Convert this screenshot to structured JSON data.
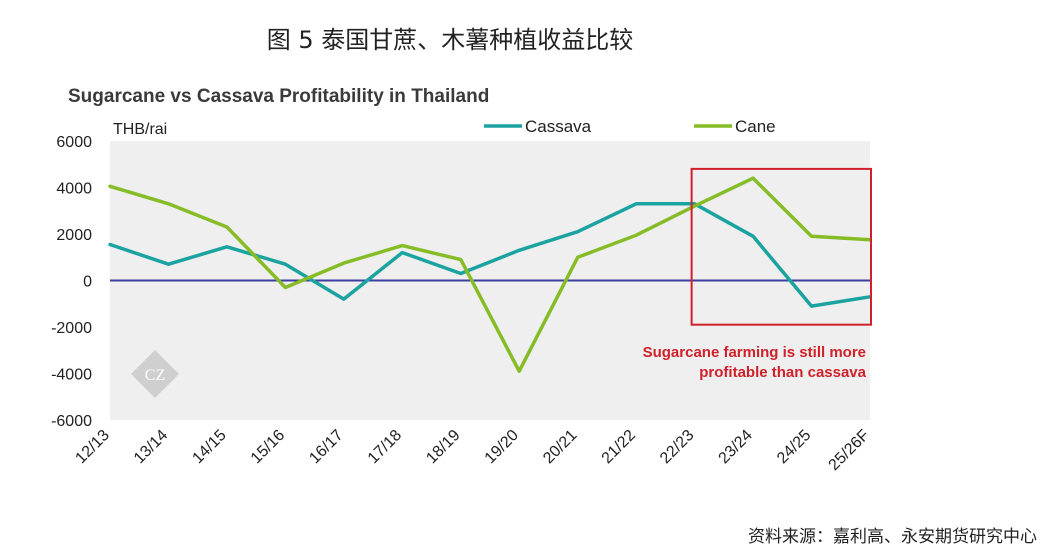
{
  "figure_title": "图 5 泰国甘蔗、木薯种植收益比较",
  "source": "资料来源：嘉利高、永安期货研究中心",
  "watermark": "CZ",
  "colors": {
    "cassava": "#1aa3a0",
    "cane": "#86bd27",
    "zero_line": "#3c3ca0",
    "highlight": "#d0202a",
    "plot_bg": "#efefef"
  },
  "chart_data": {
    "type": "line",
    "title": "Sugarcane vs Cassava Profitability in Thailand",
    "ylabel": "THB/rai",
    "xlabel": "",
    "ylim": [
      -6000,
      6000
    ],
    "yticks": [
      6000,
      4000,
      2000,
      0,
      -2000,
      -4000,
      -6000
    ],
    "ytick_labels": [
      "6000",
      "4000",
      "2000",
      "0",
      "-2000",
      "-4000",
      "-6000"
    ],
    "categories": [
      "12/13",
      "13/14",
      "14/15",
      "15/16",
      "16/17",
      "17/18",
      "18/19",
      "19/20",
      "20/21",
      "21/22",
      "22/23",
      "23/24",
      "24/25",
      "25/26F"
    ],
    "series": [
      {
        "name": "Cassava",
        "values": [
          1550,
          700,
          1450,
          700,
          -800,
          1200,
          300,
          1300,
          2100,
          3300,
          3300,
          1900,
          -1100,
          -700
        ]
      },
      {
        "name": "Cane",
        "values": [
          4050,
          3300,
          2300,
          -300,
          750,
          1500,
          900,
          -3900,
          1000,
          1950,
          3200,
          4400,
          1900,
          1750
        ]
      }
    ],
    "highlight": {
      "from_category": "22/23",
      "to_category": "25/26F",
      "ymin": -1900,
      "ymax": 4800
    },
    "annotation": [
      "Sugarcane farming is still more",
      "profitable than cassava"
    ],
    "legend": "top-right",
    "grid": false
  }
}
